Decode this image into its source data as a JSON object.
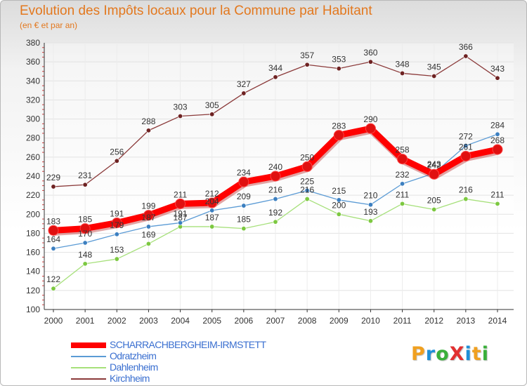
{
  "header": {
    "title": "Evolution des Impôts locaux pour la Commune par Habitant",
    "subtitle": "(en € et par an)"
  },
  "logo": {
    "text": "ProXiti",
    "letters": [
      "P",
      "r",
      "o",
      "X",
      "i",
      "t",
      "i"
    ],
    "colors": [
      "#f0a020",
      "#1e90d8",
      "#3ab03a",
      "#e23030",
      "#1e90d8",
      "#f0a020",
      "#3ab03a"
    ]
  },
  "chart_data": {
    "type": "line",
    "title": "Evolution des Impôts locaux pour la Commune par Habitant",
    "subtitle": "(en € et par an)",
    "xlabel": "",
    "ylabel": "",
    "x": [
      "2000",
      "2001",
      "2002",
      "2003",
      "2004",
      "2005",
      "2006",
      "2007",
      "2008",
      "2009",
      "2010",
      "2011",
      "2012",
      "2013",
      "2014"
    ],
    "ylim": [
      100,
      380
    ],
    "y_ticks": [
      "100",
      "120",
      "140",
      "160",
      "180",
      "200",
      "220",
      "240",
      "260",
      "280",
      "300",
      "320",
      "340",
      "360",
      "380"
    ],
    "grid": true,
    "legend_position": "bottom-left",
    "series": [
      {
        "name": "SCHARRACHBERGHEIM-IRMSTETT",
        "color": "#ff0000",
        "marker": "#e01010",
        "width": "bold",
        "values": [
          183,
          185,
          191,
          199,
          211,
          212,
          234,
          240,
          250,
          283,
          290,
          258,
          242,
          261,
          268
        ],
        "labels": [
          "183",
          "185",
          "191",
          "199",
          "211",
          "212",
          "234",
          "240",
          "250",
          "283",
          "290",
          "258",
          "242",
          "261",
          "268"
        ]
      },
      {
        "name": "Odratzheim",
        "color": "#5b9bd5",
        "marker": "#3c7fc0",
        "width": "thin",
        "values": [
          164,
          170,
          179,
          187,
          191,
          204,
          209,
          216,
          225,
          215,
          210,
          232,
          243,
          272,
          284
        ],
        "labels": [
          "164",
          "170",
          "179",
          "187",
          "191",
          "204",
          "209",
          "216",
          "225",
          "215",
          "210",
          "232",
          "243",
          "272",
          "284"
        ]
      },
      {
        "name": "Dahlenheim",
        "color": "#a6e07a",
        "marker": "#7cc840",
        "width": "thin",
        "values": [
          122,
          148,
          153,
          169,
          187,
          187,
          185,
          192,
          216,
          200,
          193,
          211,
          205,
          216,
          211
        ],
        "labels": [
          "122",
          "148",
          "153",
          "169",
          "187",
          "187",
          "185",
          "192",
          "216",
          "200",
          "193",
          "211",
          "205",
          "216",
          "211"
        ]
      },
      {
        "name": "Kirchheim",
        "color": "#8b3a3a",
        "marker": "#6e2222",
        "width": "thin",
        "values": [
          229,
          231,
          256,
          288,
          303,
          305,
          327,
          344,
          357,
          353,
          360,
          348,
          345,
          366,
          343
        ],
        "labels": [
          "229",
          "231",
          "256",
          "288",
          "303",
          "305",
          "327",
          "344",
          "357",
          "353",
          "360",
          "348",
          "345",
          "366",
          "343"
        ]
      }
    ]
  }
}
